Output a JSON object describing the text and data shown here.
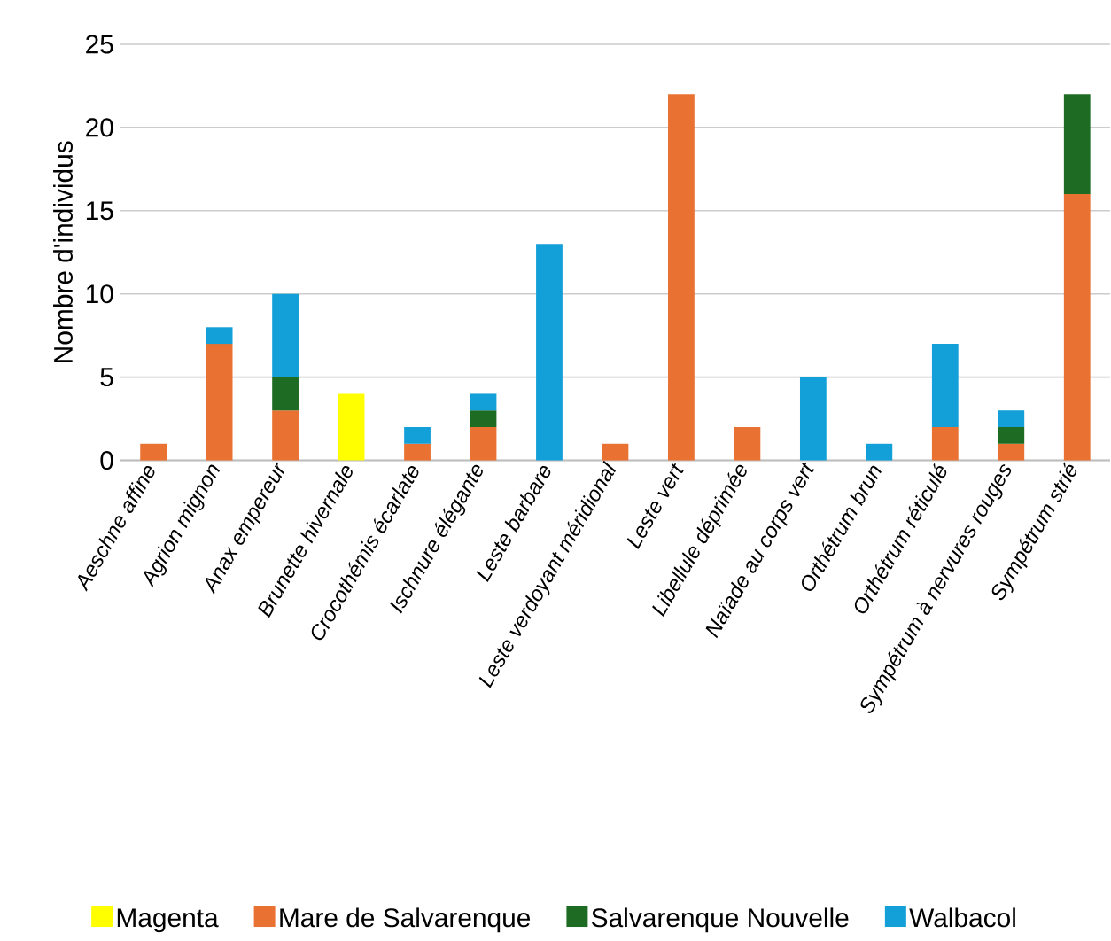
{
  "chart_data": {
    "type": "bar",
    "stacked": true,
    "ylabel": "Nombre d'individus",
    "categories": [
      "Aeschne affine",
      "Agrion mignon",
      "Anax empereur",
      "Brunette hivernale",
      "Crocothémis écarlate",
      "Ischnure élégante",
      "Leste barbare",
      "Leste verdoyant méridional",
      "Leste vert",
      "Libellule déprimée",
      "Naïade au corps vert",
      "Orthétrum brun",
      "Orthétrum réticulé",
      "Sympétrum à nervures rouges",
      "Sympétrum strié"
    ],
    "series": [
      {
        "name": "Magenta",
        "color": "#ffff00",
        "values": [
          null,
          null,
          null,
          4,
          null,
          null,
          null,
          null,
          null,
          null,
          null,
          null,
          null,
          null,
          null
        ]
      },
      {
        "name": "Mare de Salvarenque",
        "color": "#e97132",
        "values": [
          1,
          7,
          3,
          null,
          1,
          2,
          null,
          1,
          22,
          2,
          null,
          null,
          2,
          1,
          16
        ]
      },
      {
        "name": "Salvarenque Nouvelle",
        "color": "#1e6b24",
        "values": [
          null,
          null,
          2,
          null,
          null,
          1,
          null,
          null,
          null,
          null,
          null,
          null,
          null,
          1,
          6
        ]
      },
      {
        "name": "Walbacol",
        "color": "#139fd7",
        "values": [
          null,
          1,
          5,
          null,
          1,
          1,
          13,
          null,
          null,
          null,
          5,
          1,
          5,
          1,
          null
        ]
      }
    ],
    "ylim": [
      0,
      25
    ],
    "yticks": [
      0,
      5,
      10,
      15,
      20,
      25
    ],
    "grid": "y",
    "legend": "bottom"
  }
}
